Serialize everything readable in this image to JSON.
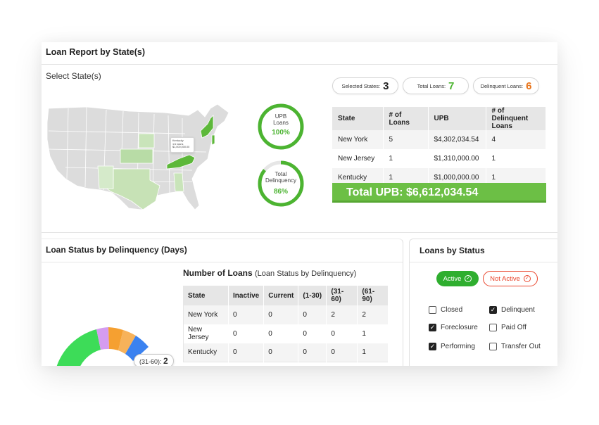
{
  "report": {
    "title": "Loan Report by State(s)",
    "select_label": "Select State(s)"
  },
  "map": {
    "tooltip_lines": [
      "Kentucky",
      "1/1 loans",
      "$1,000,000.00"
    ],
    "colors": {
      "default": "#dcdcdc",
      "selected": "#5db83a",
      "light": "#b8dca6",
      "lighter": "#d3e9c7"
    }
  },
  "rings": [
    {
      "label_line1": "UPB",
      "label_line2": "Loans",
      "pct_label": "100%",
      "pct": 1.0
    },
    {
      "label_line1": "Total",
      "label_line2": "Delinquency",
      "pct_label": "86%",
      "pct": 0.86
    }
  ],
  "summary": {
    "selected_states": {
      "label": "Selected States:",
      "value": "3",
      "color": "#222222"
    },
    "total_loans": {
      "label": "Total Loans:",
      "value": "7",
      "color": "#4cb431"
    },
    "delinquent_loans": {
      "label": "Delinquent Loans:",
      "value": "6",
      "color": "#e8741a"
    }
  },
  "state_table": {
    "headers": [
      "State",
      "# of Loans",
      "UPB",
      "# of Delinquent Loans"
    ],
    "rows": [
      [
        "New York",
        "5",
        "$4,302,034.54",
        "4"
      ],
      [
        "New Jersey",
        "1",
        "$1,310,000.00",
        "1"
      ],
      [
        "Kentucky",
        "1",
        "$1,000,000.00",
        "1"
      ]
    ],
    "total_upb": "Total UPB: $6,612,034.54"
  },
  "delinquency": {
    "panel_title": "Loan Status by Delinquency (Days)",
    "table_title": "Number of Loans",
    "table_subtitle": "(Loan Status by Delinquency)",
    "headers": [
      "State",
      "Inactive",
      "Current",
      "(1-30)",
      "(31-60)",
      "(61-90)"
    ],
    "rows": [
      [
        "New York",
        "0",
        "0",
        "0",
        "2",
        "2"
      ],
      [
        "New Jersey",
        "0",
        "0",
        "0",
        "0",
        "1"
      ],
      [
        "Kentucky",
        "0",
        "0",
        "0",
        "0",
        "1"
      ]
    ],
    "tooltip_label": "(31-60):",
    "tooltip_value": "2",
    "donut_colors": [
      "#3ddc58",
      "#d59cf0",
      "#f5a031",
      "#f7b25a",
      "#3b82f0"
    ]
  },
  "status": {
    "panel_title": "Loans by Status",
    "active_label": "Active",
    "inactive_label": "Not Active",
    "checkboxes": [
      {
        "label": "Closed",
        "checked": false
      },
      {
        "label": "Delinquent",
        "checked": true
      },
      {
        "label": "Foreclosure",
        "checked": true
      },
      {
        "label": "Paid Off",
        "checked": false
      },
      {
        "label": "Performing",
        "checked": true
      },
      {
        "label": "Transfer Out",
        "checked": false
      }
    ]
  }
}
